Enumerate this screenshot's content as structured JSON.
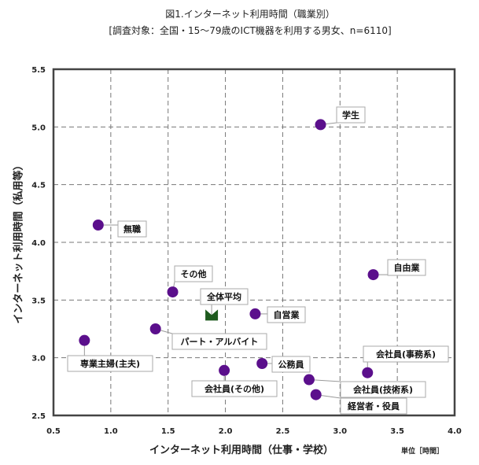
{
  "chart_data": {
    "type": "scatter",
    "title": "図1.インターネット利用時間（職業別）",
    "subtitle": "[調査対象：全国・15～79歳のICT機器を利用する男女、n=6110]",
    "xlabel": "インターネット利用時間（仕事・学校）",
    "ylabel": "インターネット利用時間（私用等）",
    "unit_note": "単位［時間］",
    "xlim": [
      0.5,
      4.0
    ],
    "ylim": [
      2.5,
      5.5
    ],
    "xticks": [
      "0.5",
      "1.0",
      "1.5",
      "2.0",
      "2.5",
      "3.0",
      "3.5",
      "4.0"
    ],
    "yticks": [
      "2.5",
      "3.0",
      "3.5",
      "4.0",
      "4.5",
      "5.0",
      "5.5"
    ],
    "grid": true,
    "colors": {
      "point": "#5b0f8c",
      "average": "#1e5a1e"
    },
    "points": [
      {
        "label": "学生",
        "x": 2.83,
        "y": 5.02
      },
      {
        "label": "無職",
        "x": 0.89,
        "y": 4.15
      },
      {
        "label": "自由業",
        "x": 3.29,
        "y": 3.72
      },
      {
        "label": "その他",
        "x": 1.54,
        "y": 3.57
      },
      {
        "label": "全体平均",
        "x": 1.88,
        "y": 3.37,
        "average": true
      },
      {
        "label": "自営業",
        "x": 2.26,
        "y": 3.38
      },
      {
        "label": "パート・アルバイト",
        "x": 1.39,
        "y": 3.25
      },
      {
        "label": "専業主婦(主夫)",
        "x": 0.77,
        "y": 3.15
      },
      {
        "label": "公務員",
        "x": 2.32,
        "y": 2.95
      },
      {
        "label": "会社員(その他)",
        "x": 1.99,
        "y": 2.89
      },
      {
        "label": "会社員(事務系)",
        "x": 3.24,
        "y": 2.87
      },
      {
        "label": "会社員(技術系)",
        "x": 2.73,
        "y": 2.81
      },
      {
        "label": "経営者・役員",
        "x": 2.79,
        "y": 2.68
      }
    ]
  }
}
